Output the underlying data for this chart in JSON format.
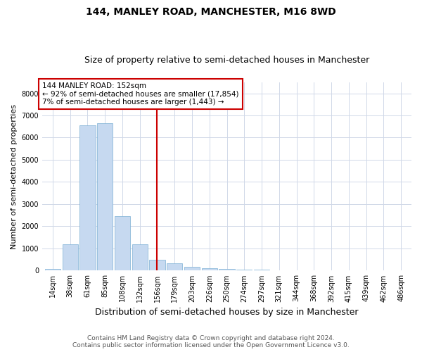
{
  "title": "144, MANLEY ROAD, MANCHESTER, M16 8WD",
  "subtitle": "Size of property relative to semi-detached houses in Manchester",
  "xlabel": "Distribution of semi-detached houses by size in Manchester",
  "ylabel": "Number of semi-detached properties",
  "footer_line1": "Contains HM Land Registry data © Crown copyright and database right 2024.",
  "footer_line2": "Contains public sector information licensed under the Open Government Licence v3.0.",
  "categories": [
    "14sqm",
    "38sqm",
    "61sqm",
    "85sqm",
    "108sqm",
    "132sqm",
    "156sqm",
    "179sqm",
    "203sqm",
    "226sqm",
    "250sqm",
    "274sqm",
    "297sqm",
    "321sqm",
    "344sqm",
    "368sqm",
    "392sqm",
    "415sqm",
    "439sqm",
    "462sqm",
    "486sqm"
  ],
  "values": [
    70,
    1200,
    6550,
    6650,
    2450,
    1180,
    500,
    320,
    160,
    110,
    70,
    50,
    30,
    10,
    5,
    2,
    1,
    1,
    1,
    1,
    1
  ],
  "bar_color": "#c6d9f0",
  "bar_edge_color": "#7bafd4",
  "vline_x_index": 6,
  "vline_color": "#cc0000",
  "annotation_box_color": "#cc0000",
  "annotation_text_line1": "144 MANLEY ROAD: 152sqm",
  "annotation_text_line2": "← 92% of semi-detached houses are smaller (17,854)",
  "annotation_text_line3": "7% of semi-detached houses are larger (1,443) →",
  "annotation_fontsize": 7.5,
  "ylim": [
    0,
    8500
  ],
  "yticks": [
    0,
    1000,
    2000,
    3000,
    4000,
    5000,
    6000,
    7000,
    8000
  ],
  "title_fontsize": 10,
  "subtitle_fontsize": 9,
  "xlabel_fontsize": 9,
  "ylabel_fontsize": 8,
  "tick_fontsize": 7,
  "footer_fontsize": 6.5,
  "background_color": "#ffffff",
  "grid_color": "#d0d8e8"
}
